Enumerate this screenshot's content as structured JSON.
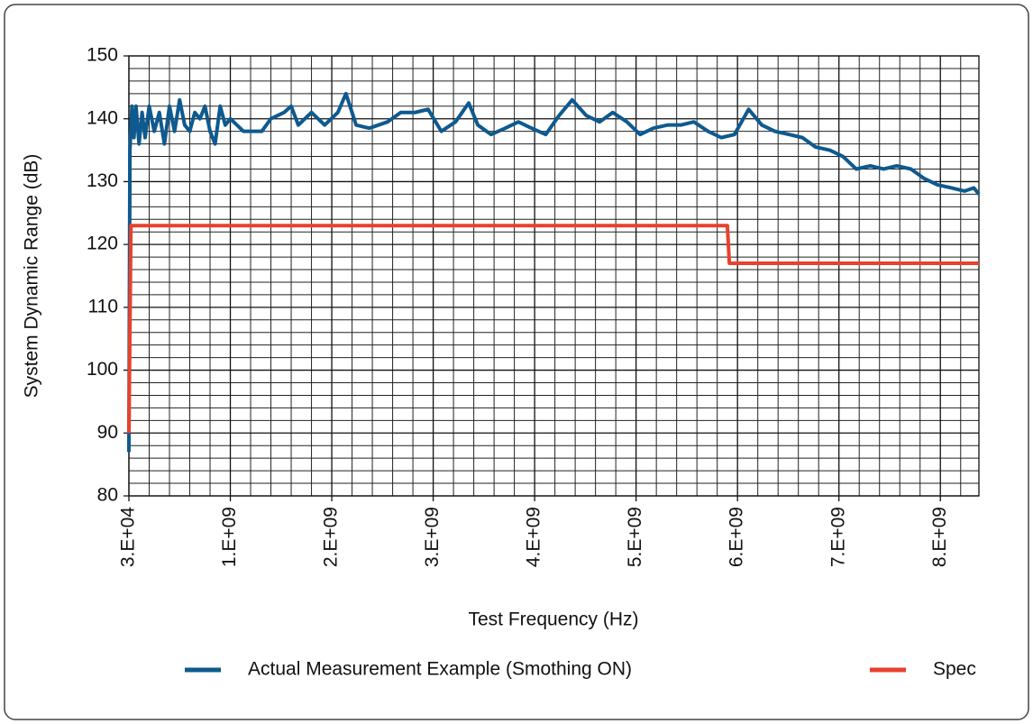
{
  "chart_data": {
    "type": "line",
    "x_label": "Test Frequency (Hz)",
    "y_label": "System Dynamic Range (dB)",
    "xlim": [
      30000,
      8380000000.0
    ],
    "ylim": [
      80,
      150
    ],
    "xticks": [
      {
        "value": 30000,
        "label": "3.E+04"
      },
      {
        "value": 1000000000.0,
        "label": "1.E+09"
      },
      {
        "value": 2000000000.0,
        "label": "2.E+09"
      },
      {
        "value": 3000000000.0,
        "label": "3.E+09"
      },
      {
        "value": 4000000000.0,
        "label": "4.E+09"
      },
      {
        "value": 5000000000.0,
        "label": "5.E+09"
      },
      {
        "value": 6000000000.0,
        "label": "6.E+09"
      },
      {
        "value": 7000000000.0,
        "label": "7.E+09"
      },
      {
        "value": 8000000000.0,
        "label": "8.E+09"
      }
    ],
    "yticks": [
      80,
      90,
      100,
      110,
      120,
      130,
      140,
      150
    ],
    "minor_xticks": [
      200000000.0,
      400000000.0,
      600000000.0,
      800000000.0,
      1200000000.0,
      1400000000.0,
      1600000000.0,
      1800000000.0,
      2200000000.0,
      2400000000.0,
      2600000000.0,
      2800000000.0,
      3200000000.0,
      3400000000.0,
      3600000000.0,
      3800000000.0,
      4200000000.0,
      4400000000.0,
      4600000000.0,
      4800000000.0,
      5200000000.0,
      5400000000.0,
      5600000000.0,
      5800000000.0,
      6200000000.0,
      6400000000.0,
      6600000000.0,
      6800000000.0,
      7200000000.0,
      7400000000.0,
      7600000000.0,
      7800000000.0,
      8200000000.0
    ],
    "minor_yticks": [
      82,
      84,
      86,
      88,
      92,
      94,
      96,
      98,
      102,
      104,
      106,
      108,
      112,
      114,
      116,
      118,
      122,
      124,
      126,
      128,
      132,
      134,
      136,
      138,
      142,
      144,
      146,
      148
    ],
    "grid": true,
    "legend": "bottom",
    "series": [
      {
        "name": "Actual Measurement Example (Smothing ON)",
        "color": "#0e5a8f",
        "x": [
          30000,
          10000000.0,
          30000000.0,
          50000000.0,
          70000000.0,
          100000000.0,
          130000000.0,
          160000000.0,
          200000000.0,
          250000000.0,
          300000000.0,
          350000000.0,
          400000000.0,
          450000000.0,
          500000000.0,
          550000000.0,
          600000000.0,
          650000000.0,
          700000000.0,
          750000000.0,
          800000000.0,
          850000000.0,
          900000000.0,
          950000000.0,
          1000000000.0,
          1130000000.0,
          1310000000.0,
          1400000000.0,
          1530000000.0,
          1600000000.0,
          1670000000.0,
          1800000000.0,
          1930000000.0,
          2060000000.0,
          2140000000.0,
          2240000000.0,
          2370000000.0,
          2550000000.0,
          2680000000.0,
          2820000000.0,
          2950000000.0,
          3080000000.0,
          3220000000.0,
          3350000000.0,
          3440000000.0,
          3570000000.0,
          3710000000.0,
          3840000000.0,
          3970000000.0,
          4110000000.0,
          4240000000.0,
          4370000000.0,
          4510000000.0,
          4640000000.0,
          4770000000.0,
          4910000000.0,
          5040000000.0,
          5170000000.0,
          5310000000.0,
          5440000000.0,
          5570000000.0,
          5710000000.0,
          5840000000.0,
          5970000000.0,
          6110000000.0,
          6240000000.0,
          6370000000.0,
          6510000000.0,
          6640000000.0,
          6770000000.0,
          6910000000.0,
          7040000000.0,
          7170000000.0,
          7310000000.0,
          7440000000.0,
          7570000000.0,
          7710000000.0,
          7840000000.0,
          7970000000.0,
          8110000000.0,
          8240000000.0,
          8330000000.0,
          8380000000.0
        ],
        "values": [
          87,
          135,
          142,
          137,
          142,
          136,
          141,
          137,
          142,
          138,
          141,
          136,
          142,
          138,
          143,
          139,
          138,
          141,
          140,
          142,
          138,
          136,
          142,
          139,
          140,
          138,
          138,
          140,
          141,
          142,
          139,
          141,
          139,
          141,
          144,
          139,
          138.5,
          139.5,
          141,
          141,
          141.5,
          138,
          139.5,
          142.5,
          139,
          137.5,
          138.5,
          139.5,
          138.5,
          137.5,
          140.5,
          143,
          140.5,
          139.5,
          141,
          139.5,
          137.5,
          138.5,
          139,
          139,
          139.5,
          138,
          137,
          137.5,
          141.5,
          139,
          138,
          137.5,
          137,
          135.5,
          135,
          134,
          132,
          132.5,
          132,
          132.5,
          132,
          130.5,
          129.5,
          129,
          128.5,
          129,
          128
        ]
      },
      {
        "name": "Spec",
        "color": "#e8412c",
        "x": [
          30000,
          20000000.0,
          5900000000.0,
          5920000000.0,
          8380000000.0
        ],
        "values": [
          90,
          123,
          123,
          117,
          117
        ]
      }
    ]
  }
}
